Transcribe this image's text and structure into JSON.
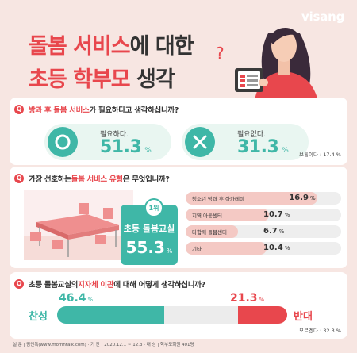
{
  "brand": {
    "name": "visang"
  },
  "title": {
    "line1_a": "돌봄 서비스",
    "line1_b": "에 대한",
    "line2_a": "초등 학부모",
    "line2_b": " 생각"
  },
  "q1": {
    "prefix": "방과 후 돌봄 서비스",
    "suffix": "가 필요하다고 생각하십니까?",
    "yes_label": "필요하다.",
    "yes_value": "51.3",
    "no_label": "필요없다.",
    "no_value": "31.3",
    "unit": "%",
    "note": "보통이다 : 17.4 %"
  },
  "q2": {
    "prefix": "가장 선호하는 ",
    "em": "돌봄 서비스 유형",
    "suffix": "은 무엇입니까?",
    "rank_badge": "1위",
    "rank_name": "초등 돌봄교실",
    "rank_value": "55.3",
    "unit": "%",
    "items": [
      {
        "label": "청소년 방과 후 아카데미",
        "value": 16.9
      },
      {
        "label": "지역 아동센터",
        "value": 10.7
      },
      {
        "label": "다함께 돌봄센터",
        "value": 6.7
      },
      {
        "label": "기타",
        "value": 10.4
      }
    ]
  },
  "q3": {
    "prefix": "초등 돌봄교실의 ",
    "em": "지자체 이관",
    "suffix": "에 대해 어떻게 생각하십니까?",
    "agree_value": "46.4",
    "oppose_value": "21.3",
    "unit": "%",
    "agree_label": "찬성",
    "oppose_label": "반대",
    "note": "모르겠다 : 32.3 %"
  },
  "footer": "설 문 | 맘앤톡(www.momntalk.com) · 기 간 | 2020.12.1 ~ 12.3 · 대 상 | 학부모회원 401명",
  "colors": {
    "accent": "#e8474d",
    "teal": "#3fb7a7",
    "pink_bg": "#f7e6e2",
    "bar_fill": "#f4c9c4"
  }
}
